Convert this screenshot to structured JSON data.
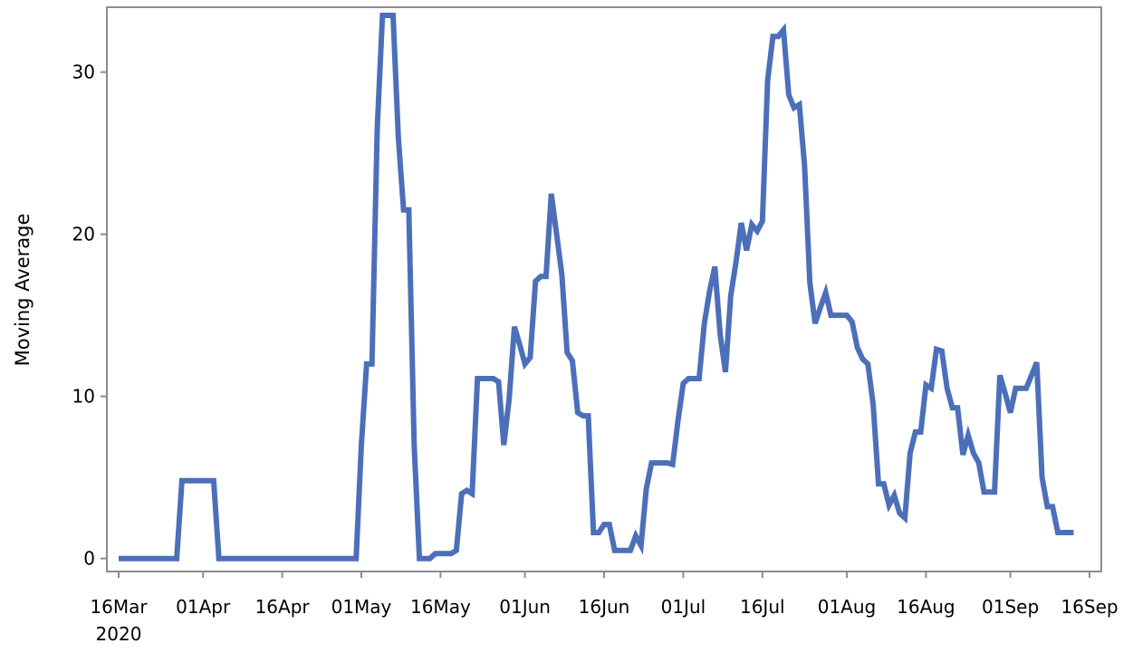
{
  "chart_data": {
    "type": "line",
    "title": "",
    "xlabel": "",
    "ylabel": "Moving Average",
    "x_start": "2020-03-16",
    "x_end": "2020-09-16",
    "ylim": [
      -0.8,
      34
    ],
    "yticks": [
      0,
      10,
      20,
      30
    ],
    "xticks": [
      {
        "date": "2020-03-16",
        "label": "16Mar",
        "sublabel": "2020"
      },
      {
        "date": "2020-04-01",
        "label": "01Apr",
        "sublabel": ""
      },
      {
        "date": "2020-04-16",
        "label": "16Apr",
        "sublabel": ""
      },
      {
        "date": "2020-05-01",
        "label": "01May",
        "sublabel": ""
      },
      {
        "date": "2020-05-16",
        "label": "16May",
        "sublabel": ""
      },
      {
        "date": "2020-06-01",
        "label": "01Jun",
        "sublabel": ""
      },
      {
        "date": "2020-06-16",
        "label": "16Jun",
        "sublabel": ""
      },
      {
        "date": "2020-07-01",
        "label": "01Jul",
        "sublabel": ""
      },
      {
        "date": "2020-07-16",
        "label": "16Jul",
        "sublabel": ""
      },
      {
        "date": "2020-08-01",
        "label": "01Aug",
        "sublabel": ""
      },
      {
        "date": "2020-08-16",
        "label": "16Aug",
        "sublabel": ""
      },
      {
        "date": "2020-09-01",
        "label": "01Sep",
        "sublabel": ""
      },
      {
        "date": "2020-09-16",
        "label": "16Sep",
        "sublabel": ""
      }
    ],
    "grid": false,
    "legend": "none",
    "series": [
      {
        "color": "#4c6fba",
        "points": [
          [
            "2020-03-16",
            0
          ],
          [
            "2020-03-27",
            0
          ],
          [
            "2020-03-28",
            4.8
          ],
          [
            "2020-04-03",
            4.8
          ],
          [
            "2020-04-04",
            0
          ],
          [
            "2020-04-30",
            0
          ],
          [
            "2020-05-01",
            7
          ],
          [
            "2020-05-02",
            12
          ],
          [
            "2020-05-03",
            12
          ],
          [
            "2020-05-04",
            26.5
          ],
          [
            "2020-05-05",
            33.5
          ],
          [
            "2020-05-07",
            33.5
          ],
          [
            "2020-05-08",
            26
          ],
          [
            "2020-05-09",
            21.5
          ],
          [
            "2020-05-10",
            21.5
          ],
          [
            "2020-05-11",
            7
          ],
          [
            "2020-05-12",
            0
          ],
          [
            "2020-05-14",
            0
          ],
          [
            "2020-05-15",
            0.3
          ],
          [
            "2020-05-18",
            0.3
          ],
          [
            "2020-05-19",
            0.5
          ],
          [
            "2020-05-20",
            4
          ],
          [
            "2020-05-21",
            4.2
          ],
          [
            "2020-05-22",
            4
          ],
          [
            "2020-05-23",
            11.1
          ],
          [
            "2020-05-26",
            11.1
          ],
          [
            "2020-05-27",
            10.9
          ],
          [
            "2020-05-28",
            7
          ],
          [
            "2020-05-29",
            9.8
          ],
          [
            "2020-05-30",
            14.3
          ],
          [
            "2020-05-31",
            13.2
          ],
          [
            "2020-06-01",
            12
          ],
          [
            "2020-06-02",
            12.4
          ],
          [
            "2020-06-03",
            17.1
          ],
          [
            "2020-06-04",
            17.4
          ],
          [
            "2020-06-05",
            17.4
          ],
          [
            "2020-06-06",
            22.5
          ],
          [
            "2020-06-07",
            20
          ],
          [
            "2020-06-08",
            17.5
          ],
          [
            "2020-06-09",
            12.7
          ],
          [
            "2020-06-10",
            12.2
          ],
          [
            "2020-06-11",
            9
          ],
          [
            "2020-06-12",
            8.8
          ],
          [
            "2020-06-13",
            8.8
          ],
          [
            "2020-06-14",
            1.6
          ],
          [
            "2020-06-15",
            1.6
          ],
          [
            "2020-06-16",
            2.1
          ],
          [
            "2020-06-17",
            2.1
          ],
          [
            "2020-06-18",
            0.5
          ],
          [
            "2020-06-21",
            0.5
          ],
          [
            "2020-06-22",
            1.4
          ],
          [
            "2020-06-23",
            0.8
          ],
          [
            "2020-06-24",
            4.3
          ],
          [
            "2020-06-25",
            5.9
          ],
          [
            "2020-06-28",
            5.9
          ],
          [
            "2020-06-29",
            5.8
          ],
          [
            "2020-06-30",
            8.5
          ],
          [
            "2020-07-01",
            10.8
          ],
          [
            "2020-07-02",
            11.1
          ],
          [
            "2020-07-04",
            11.1
          ],
          [
            "2020-07-05",
            14.5
          ],
          [
            "2020-07-06",
            16.5
          ],
          [
            "2020-07-07",
            18
          ],
          [
            "2020-07-08",
            13.8
          ],
          [
            "2020-07-09",
            11.5
          ],
          [
            "2020-07-10",
            16.2
          ],
          [
            "2020-07-11",
            18.3
          ],
          [
            "2020-07-12",
            20.7
          ],
          [
            "2020-07-13",
            19
          ],
          [
            "2020-07-14",
            20.6
          ],
          [
            "2020-07-15",
            20.2
          ],
          [
            "2020-07-16",
            20.8
          ],
          [
            "2020-07-17",
            29.5
          ],
          [
            "2020-07-18",
            32.2
          ],
          [
            "2020-07-19",
            32.2
          ],
          [
            "2020-07-20",
            32.6
          ],
          [
            "2020-07-21",
            28.6
          ],
          [
            "2020-07-22",
            27.8
          ],
          [
            "2020-07-23",
            28
          ],
          [
            "2020-07-24",
            24.2
          ],
          [
            "2020-07-25",
            17
          ],
          [
            "2020-07-26",
            14.5
          ],
          [
            "2020-07-27",
            15.5
          ],
          [
            "2020-07-28",
            16.4
          ],
          [
            "2020-07-29",
            15
          ],
          [
            "2020-07-30",
            15
          ],
          [
            "2020-08-01",
            15
          ],
          [
            "2020-08-02",
            14.6
          ],
          [
            "2020-08-03",
            13
          ],
          [
            "2020-08-04",
            12.3
          ],
          [
            "2020-08-05",
            12
          ],
          [
            "2020-08-06",
            9.5
          ],
          [
            "2020-08-07",
            4.6
          ],
          [
            "2020-08-08",
            4.6
          ],
          [
            "2020-08-09",
            3.3
          ],
          [
            "2020-08-10",
            3.9
          ],
          [
            "2020-08-11",
            2.8
          ],
          [
            "2020-08-12",
            2.5
          ],
          [
            "2020-08-13",
            6.5
          ],
          [
            "2020-08-14",
            7.8
          ],
          [
            "2020-08-15",
            7.8
          ],
          [
            "2020-08-16",
            10.7
          ],
          [
            "2020-08-17",
            10.5
          ],
          [
            "2020-08-18",
            12.9
          ],
          [
            "2020-08-19",
            12.8
          ],
          [
            "2020-08-20",
            10.5
          ],
          [
            "2020-08-21",
            9.3
          ],
          [
            "2020-08-22",
            9.3
          ],
          [
            "2020-08-23",
            6.4
          ],
          [
            "2020-08-24",
            7.6
          ],
          [
            "2020-08-25",
            6.5
          ],
          [
            "2020-08-26",
            5.9
          ],
          [
            "2020-08-27",
            4.1
          ],
          [
            "2020-08-29",
            4.1
          ],
          [
            "2020-08-30",
            11.3
          ],
          [
            "2020-08-31",
            10.2
          ],
          [
            "2020-09-01",
            9
          ],
          [
            "2020-09-02",
            10.5
          ],
          [
            "2020-09-04",
            10.5
          ],
          [
            "2020-09-06",
            12.1
          ],
          [
            "2020-09-07",
            5
          ],
          [
            "2020-09-08",
            3.2
          ],
          [
            "2020-09-09",
            3.2
          ],
          [
            "2020-09-10",
            1.6
          ],
          [
            "2020-09-13",
            1.6
          ]
        ]
      }
    ]
  }
}
